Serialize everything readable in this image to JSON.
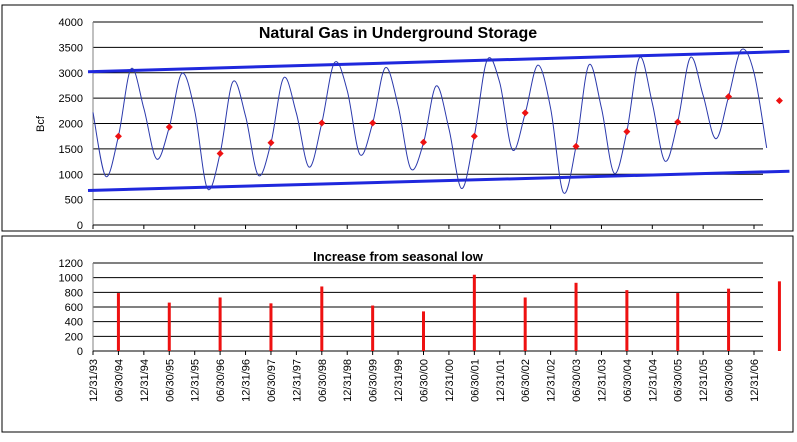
{
  "chart_data": [
    {
      "type": "line",
      "title": "Natural Gas in Underground Storage",
      "ylabel": "Bcf",
      "ylim": [
        0,
        4000
      ],
      "yticks": [
        0,
        500,
        1000,
        1500,
        2000,
        2500,
        3000,
        3500,
        4000
      ],
      "grid": true,
      "x_range": [
        "12/31/93",
        "12/31/06"
      ],
      "series": [
        {
          "style": "line",
          "color": "#2b39ac",
          "x": [
            "12/31/93",
            "03/31/94",
            "06/30/94",
            "09/30/94",
            "12/31/94",
            "03/31/95",
            "06/30/95",
            "09/30/95",
            "12/31/95",
            "03/31/96",
            "06/30/96",
            "09/30/96",
            "12/31/96",
            "03/31/97",
            "06/30/97",
            "09/30/97",
            "12/31/97",
            "03/31/98",
            "06/30/98",
            "09/30/98",
            "12/31/98",
            "03/31/99",
            "06/30/99",
            "09/30/99",
            "12/31/99",
            "03/31/00",
            "06/30/00",
            "09/30/00",
            "12/31/00",
            "03/31/01",
            "06/30/01",
            "09/30/01",
            "12/31/01",
            "03/31/02",
            "06/30/02",
            "09/30/02",
            "12/31/02",
            "03/31/03",
            "06/30/03",
            "09/30/03",
            "12/31/03",
            "03/31/04",
            "06/30/04",
            "09/30/04",
            "12/31/04",
            "03/31/05",
            "06/30/05",
            "09/30/05",
            "12/31/05",
            "03/31/06",
            "06/30/06",
            "09/30/06",
            "12/31/06",
            "03/31/07"
          ],
          "values": [
            2220,
            960,
            1750,
            3080,
            2300,
            1300,
            1930,
            2990,
            2250,
            720,
            1410,
            2820,
            2150,
            980,
            1620,
            2900,
            2200,
            1140,
            2010,
            3200,
            2650,
            1390,
            2010,
            3100,
            2350,
            1110,
            1620,
            2740,
            1900,
            720,
            1750,
            3250,
            2800,
            1480,
            2200,
            3150,
            2300,
            640,
            1550,
            3150,
            2300,
            1020,
            1850,
            3300,
            2400,
            1260,
            2030,
            3300,
            2550,
            1700,
            2530,
            3450,
            3000,
            1520
          ]
        },
        {
          "name": "",
          "style": "markers",
          "color": "#ee1111",
          "x": [
            "06/30/94",
            "06/30/95",
            "06/30/96",
            "06/30/97",
            "06/30/98",
            "06/30/99",
            "06/30/00",
            "06/30/01",
            "06/30/02",
            "06/30/03",
            "06/30/04",
            "06/30/05",
            "06/30/06",
            "06/30/07"
          ],
          "values": [
            1750,
            1930,
            1410,
            1620,
            2010,
            2010,
            1630,
            1750,
            2210,
            1550,
            1840,
            2030,
            2530,
            2450
          ]
        }
      ],
      "trendlines": [
        {
          "color": "#1f28dd",
          "from": [
            "12/31/93",
            3020
          ],
          "to": [
            "06/30/07",
            3420
          ]
        },
        {
          "color": "#1f28dd",
          "from": [
            "12/31/93",
            680
          ],
          "to": [
            "06/30/07",
            1060
          ]
        }
      ]
    },
    {
      "type": "bar",
      "title": "Increase from seasonal low",
      "ylim": [
        0,
        1200
      ],
      "yticks": [
        0,
        200,
        400,
        600,
        800,
        1000,
        1200
      ],
      "grid": true,
      "color": "#ee1111",
      "x": [
        "06/30/94",
        "06/30/95",
        "06/30/96",
        "06/30/97",
        "06/30/98",
        "06/30/99",
        "06/30/00",
        "06/30/01",
        "06/30/02",
        "06/30/03",
        "06/30/04",
        "06/30/05",
        "06/30/06",
        "06/30/07"
      ],
      "values": [
        790,
        660,
        730,
        650,
        880,
        620,
        540,
        1040,
        730,
        930,
        830,
        790,
        850,
        950
      ],
      "xtick_labels": [
        "12/31/93",
        "06/30/94",
        "12/31/94",
        "06/30/95",
        "12/31/95",
        "06/30/96",
        "12/31/96",
        "06/30/97",
        "12/31/97",
        "06/30/98",
        "12/31/98",
        "06/30/99",
        "12/31/99",
        "06/30/00",
        "12/31/00",
        "06/30/01",
        "12/31/01",
        "06/30/02",
        "12/31/02",
        "06/30/03",
        "12/31/03",
        "06/30/04",
        "12/31/04",
        "06/30/05",
        "12/31/05",
        "06/30/06",
        "12/31/06"
      ]
    }
  ]
}
